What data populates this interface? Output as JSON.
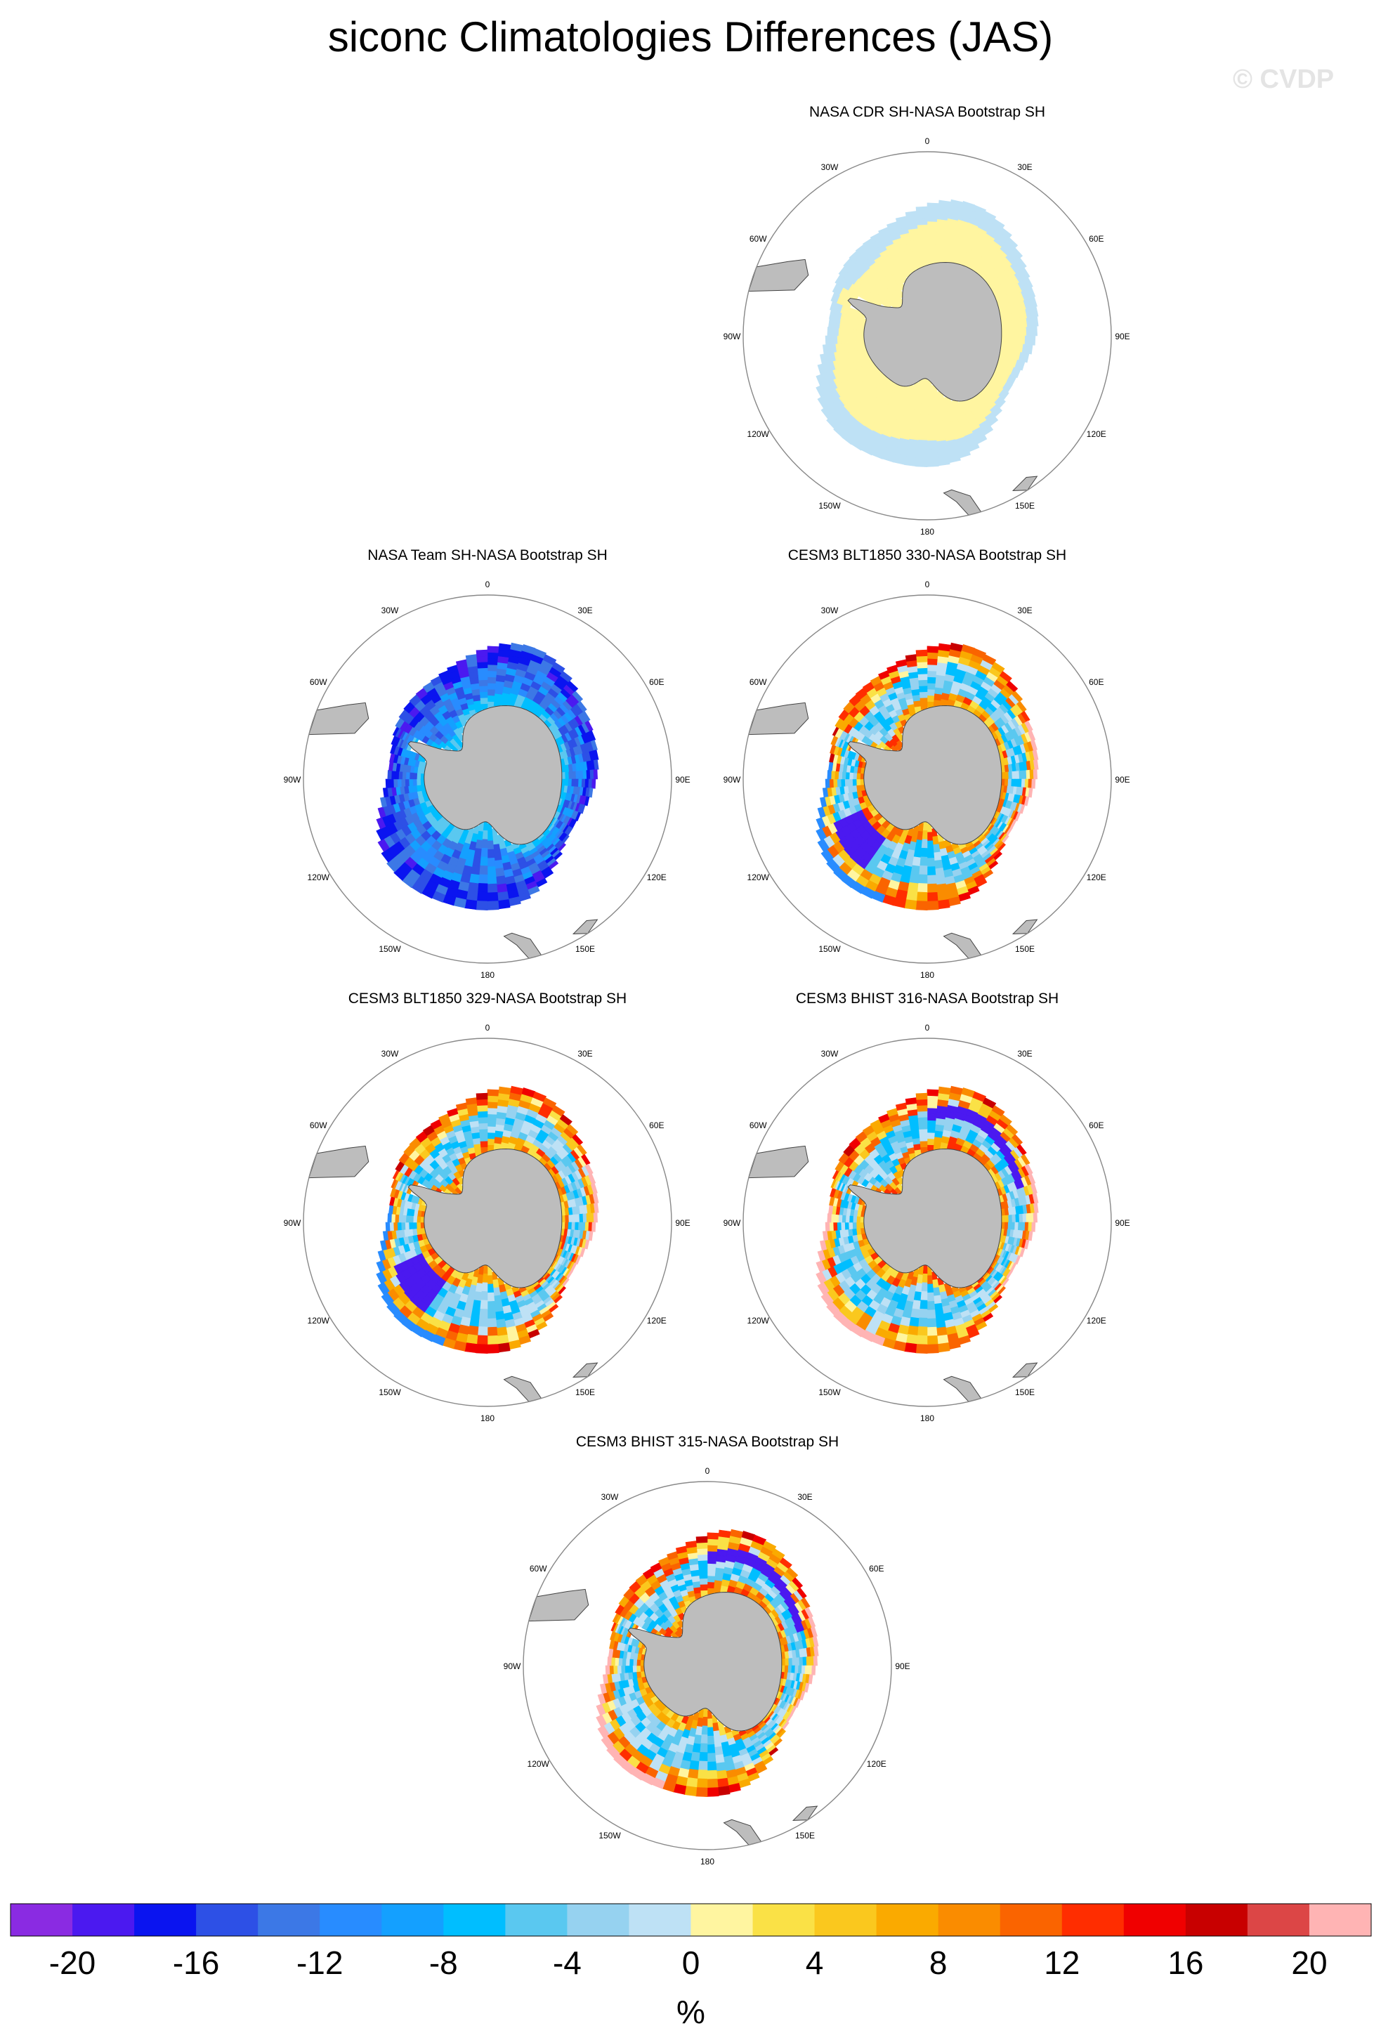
{
  "figure": {
    "title": "siconc Climatologies Differences (JAS)",
    "watermark": "© CVDP"
  },
  "chart_data": [
    {
      "type": "heatmap",
      "projection": "south-polar-stereographic",
      "title": "NASA CDR SH-NASA Bootstrap SH",
      "field_pattern": "cdr",
      "longitude_labels": [
        "0",
        "30E",
        "60E",
        "90E",
        "120E",
        "150E",
        "180",
        "150W",
        "120W",
        "90W",
        "60W",
        "30W"
      ]
    },
    {
      "type": "heatmap",
      "projection": "south-polar-stereographic",
      "title": "NASA Team SH-NASA Bootstrap SH",
      "field_pattern": "team",
      "longitude_labels": [
        "0",
        "30E",
        "60E",
        "90E",
        "120E",
        "150E",
        "180",
        "150W",
        "120W",
        "90W",
        "60W",
        "30W"
      ]
    },
    {
      "type": "heatmap",
      "projection": "south-polar-stereographic",
      "title": "CESM3 BLT1850 330-NASA Bootstrap SH",
      "field_pattern": "model",
      "longitude_labels": [
        "0",
        "30E",
        "60E",
        "90E",
        "120E",
        "150E",
        "180",
        "150W",
        "120W",
        "90W",
        "60W",
        "30W"
      ]
    },
    {
      "type": "heatmap",
      "projection": "south-polar-stereographic",
      "title": "CESM3 BLT1850 329-NASA Bootstrap SH",
      "field_pattern": "model",
      "longitude_labels": [
        "0",
        "30E",
        "60E",
        "90E",
        "120E",
        "150E",
        "180",
        "150W",
        "120W",
        "90W",
        "60W",
        "30W"
      ]
    },
    {
      "type": "heatmap",
      "projection": "south-polar-stereographic",
      "title": "CESM3 BHIST 316-NASA Bootstrap SH",
      "field_pattern": "model_hist",
      "longitude_labels": [
        "0",
        "30E",
        "60E",
        "90E",
        "120E",
        "150E",
        "180",
        "150W",
        "120W",
        "90W",
        "60W",
        "30W"
      ]
    },
    {
      "type": "heatmap",
      "projection": "south-polar-stereographic",
      "title": "CESM3 BHIST 315-NASA Bootstrap SH",
      "field_pattern": "model_hist",
      "longitude_labels": [
        "0",
        "30E",
        "60E",
        "90E",
        "120E",
        "150E",
        "180",
        "150W",
        "120W",
        "90W",
        "60W",
        "30W"
      ]
    }
  ],
  "colorbar": {
    "label": "%",
    "range": [
      -22,
      22
    ],
    "step": 2,
    "tick_values": [
      -20,
      -16,
      -12,
      -8,
      -4,
      0,
      4,
      8,
      12,
      16,
      20
    ],
    "tick_labels": [
      "-20",
      "-16",
      "-12",
      "-8",
      "-4",
      "0",
      "4",
      "8",
      "12",
      "16",
      "20"
    ],
    "colors": [
      "#8a2be2",
      "#4b19f0",
      "#0a14f0",
      "#2d50e6",
      "#3c78e6",
      "#288cff",
      "#14a0ff",
      "#00beff",
      "#5ac8f0",
      "#96d2f0",
      "#bee1f5",
      "#fff5a0",
      "#fae146",
      "#fac81e",
      "#faaa00",
      "#fa8c00",
      "#fa6400",
      "#ff2d00",
      "#f00000",
      "#c80000",
      "#dc4646",
      "#ffb4b4"
    ]
  }
}
